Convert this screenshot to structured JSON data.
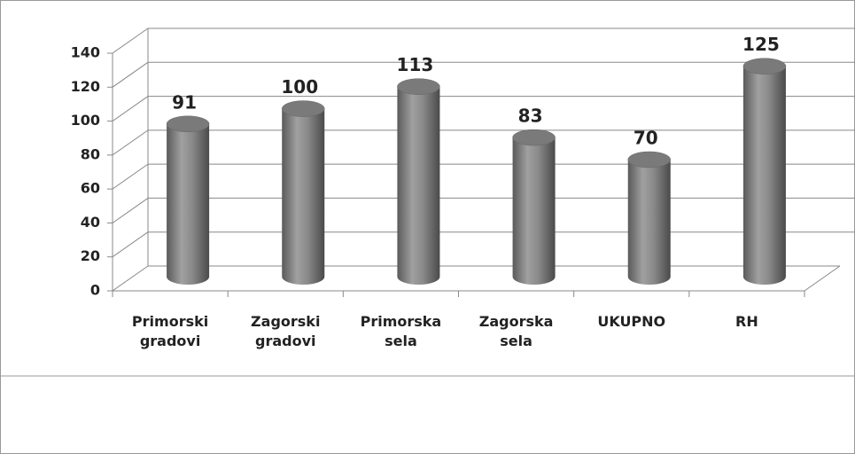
{
  "chart_data": {
    "type": "bar3d",
    "categories": [
      "Primorski gradovi",
      "Zagorski gradovi",
      "Primorska sela",
      "Zagorska sela",
      "UKUPNO",
      "RH"
    ],
    "values": [
      91,
      100,
      113,
      83,
      70,
      125
    ],
    "color": "#808080",
    "ylim": [
      0,
      140
    ],
    "yticks": [
      0,
      20,
      40,
      60,
      80,
      100,
      120,
      140
    ],
    "grid": true
  }
}
